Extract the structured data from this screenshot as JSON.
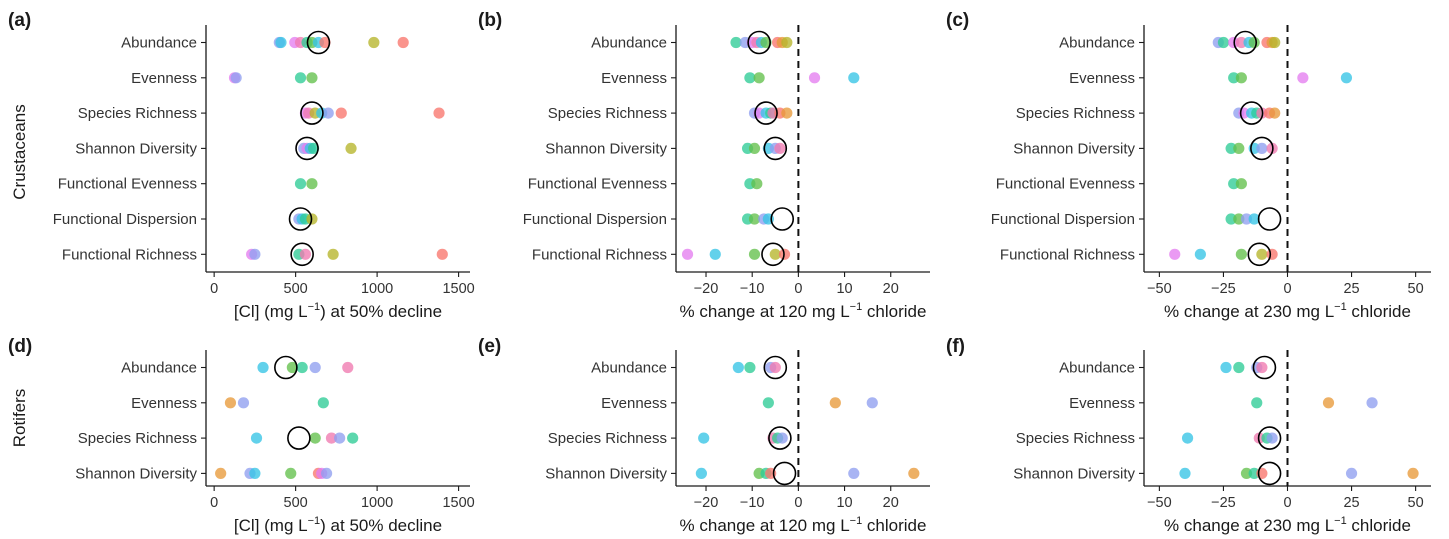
{
  "rows": [
    "Crustaceans",
    "Rotifers"
  ],
  "colors": [
    "#f8766d",
    "#e89a3a",
    "#b6b52a",
    "#63c04c",
    "#2ecc96",
    "#36c4e6",
    "#8f9ff0",
    "#e47ef0",
    "#f07ab0"
  ],
  "chart_data": [
    {
      "panel": "(a)",
      "type": "scatter",
      "row": "Crustaceans",
      "xlabel_pre": "[Cl] (mg L",
      "xlabel_sup": "−1",
      "xlabel_post": ")  at 50% decline",
      "xlim": [
        -50,
        1570
      ],
      "xticks": [
        0,
        500,
        1000,
        1500
      ],
      "zero_line": false,
      "categories": [
        "Abundance",
        "Evenness",
        "Species Richness",
        "Shannon Diversity",
        "Functional Evenness",
        "Functional Dispersion",
        "Functional Richness"
      ],
      "points": [
        {
          "y": 0,
          "x": [
            400,
            410,
            495,
            530,
            570,
            600,
            640,
            680,
            980,
            1160
          ],
          "c": [
            6,
            5,
            7,
            8,
            4,
            3,
            5,
            0,
            2,
            0
          ]
        },
        {
          "y": 1,
          "x": [
            125,
            135,
            530,
            600
          ],
          "c": [
            7,
            6,
            4,
            3
          ]
        },
        {
          "y": 2,
          "x": [
            560,
            580,
            620,
            660,
            700,
            780,
            1380
          ],
          "c": [
            7,
            8,
            2,
            5,
            6,
            0,
            0
          ]
        },
        {
          "y": 3,
          "x": [
            550,
            570,
            590,
            610,
            840
          ],
          "c": [
            6,
            7,
            5,
            4,
            2
          ]
        },
        {
          "y": 4,
          "x": [
            530,
            600
          ],
          "c": [
            4,
            3
          ]
        },
        {
          "y": 5,
          "x": [
            520,
            540,
            560,
            600
          ],
          "c": [
            6,
            5,
            4,
            2
          ]
        },
        {
          "y": 6,
          "x": [
            230,
            250,
            520,
            560,
            730,
            1400
          ],
          "c": [
            7,
            6,
            4,
            8,
            2,
            0
          ]
        }
      ],
      "means": [
        {
          "y": 0,
          "x": 640
        },
        {
          "y": 2,
          "x": 600
        },
        {
          "y": 3,
          "x": 570
        },
        {
          "y": 5,
          "x": 530
        },
        {
          "y": 6,
          "x": 540
        }
      ]
    },
    {
      "panel": "(b)",
      "type": "scatter",
      "row": "Crustaceans",
      "xlabel_pre": "% change at 120 mg L",
      "xlabel_sup": "−1",
      "xlabel_post": " chloride",
      "xlim": [
        -26.5,
        28.5
      ],
      "xticks": [
        -20,
        -10,
        0,
        10,
        20
      ],
      "zero_line": true,
      "categories": [
        "Abundance",
        "Evenness",
        "Species Richness",
        "Shannon Diversity",
        "Functional Evenness",
        "Functional Dispersion",
        "Functional Richness"
      ],
      "points": [
        {
          "y": 0,
          "x": [
            -13.5,
            -11.5,
            -10,
            -9,
            -8,
            -7,
            -4.5,
            -3.5,
            -2.5
          ],
          "c": [
            4,
            6,
            7,
            8,
            5,
            3,
            0,
            1,
            2
          ]
        },
        {
          "y": 1,
          "x": [
            -10.5,
            -8.5,
            3.5,
            12
          ],
          "c": [
            4,
            3,
            7,
            5
          ]
        },
        {
          "y": 2,
          "x": [
            -9.5,
            -8.5,
            -7,
            -6,
            -5.5,
            -4,
            -2.5
          ],
          "c": [
            6,
            7,
            5,
            4,
            8,
            0,
            1
          ]
        },
        {
          "y": 3,
          "x": [
            -11,
            -9.5,
            -6.5,
            -5,
            -4
          ],
          "c": [
            4,
            3,
            5,
            6,
            8
          ]
        },
        {
          "y": 4,
          "x": [
            -10.5,
            -9
          ],
          "c": [
            4,
            3
          ]
        },
        {
          "y": 5,
          "x": [
            -11,
            -9.5,
            -7.5,
            -6.5
          ],
          "c": [
            4,
            3,
            6,
            5
          ]
        },
        {
          "y": 6,
          "x": [
            -24,
            -18,
            -9.5,
            -5,
            -3
          ],
          "c": [
            7,
            5,
            3,
            2,
            0
          ]
        }
      ],
      "means": [
        {
          "y": 0,
          "x": -8.5
        },
        {
          "y": 2,
          "x": -7
        },
        {
          "y": 3,
          "x": -5
        },
        {
          "y": 5,
          "x": -3.5
        },
        {
          "y": 6,
          "x": -5.5
        }
      ]
    },
    {
      "panel": "(c)",
      "type": "scatter",
      "row": "Crustaceans",
      "xlabel_pre": "% change at 230 mg L",
      "xlabel_sup": "−1",
      "xlabel_post": " chloride",
      "xlim": [
        -56,
        56
      ],
      "xticks": [
        -50,
        -25,
        0,
        25,
        50
      ],
      "zero_line": true,
      "categories": [
        "Abundance",
        "Evenness",
        "Species Richness",
        "Shannon Diversity",
        "Functional Evenness",
        "Functional Dispersion",
        "Functional Richness"
      ],
      "points": [
        {
          "y": 0,
          "x": [
            -27,
            -25,
            -21,
            -18,
            -15,
            -13,
            -8,
            -6,
            -5
          ],
          "c": [
            6,
            4,
            7,
            8,
            5,
            3,
            0,
            1,
            2
          ]
        },
        {
          "y": 1,
          "x": [
            -21,
            -18,
            6,
            23
          ],
          "c": [
            4,
            3,
            7,
            5
          ]
        },
        {
          "y": 2,
          "x": [
            -19,
            -17,
            -14,
            -12,
            -10,
            -7,
            -5
          ],
          "c": [
            6,
            7,
            5,
            4,
            8,
            0,
            1
          ]
        },
        {
          "y": 3,
          "x": [
            -22,
            -19,
            -13,
            -10,
            -6
          ],
          "c": [
            4,
            3,
            5,
            6,
            8
          ]
        },
        {
          "y": 4,
          "x": [
            -21,
            -18
          ],
          "c": [
            4,
            3
          ]
        },
        {
          "y": 5,
          "x": [
            -22,
            -19,
            -16,
            -13
          ],
          "c": [
            4,
            3,
            6,
            5
          ]
        },
        {
          "y": 6,
          "x": [
            -44,
            -34,
            -18,
            -10,
            -6
          ],
          "c": [
            7,
            5,
            3,
            2,
            0
          ]
        }
      ],
      "means": [
        {
          "y": 0,
          "x": -16.5
        },
        {
          "y": 2,
          "x": -14
        },
        {
          "y": 3,
          "x": -10
        },
        {
          "y": 5,
          "x": -7
        },
        {
          "y": 6,
          "x": -11
        }
      ]
    },
    {
      "panel": "(d)",
      "type": "scatter",
      "row": "Rotifers",
      "xlabel_pre": "[Cl] (mg L",
      "xlabel_sup": "−1",
      "xlabel_post": ")  at 50% decline",
      "xlim": [
        -50,
        1570
      ],
      "xticks": [
        0,
        500,
        1000,
        1500
      ],
      "zero_line": false,
      "categories": [
        "Abundance",
        "Evenness",
        "Species Richness",
        "Shannon Diversity"
      ],
      "points": [
        {
          "y": 0,
          "x": [
            300,
            480,
            540,
            620,
            820
          ],
          "c": [
            5,
            3,
            4,
            6,
            8
          ]
        },
        {
          "y": 1,
          "x": [
            100,
            180,
            670
          ],
          "c": [
            1,
            6,
            4
          ]
        },
        {
          "y": 2,
          "x": [
            260,
            620,
            720,
            770,
            850
          ],
          "c": [
            5,
            3,
            8,
            6,
            4
          ]
        },
        {
          "y": 3,
          "x": [
            40,
            220,
            250,
            470,
            640,
            660,
            690
          ],
          "c": [
            1,
            6,
            5,
            3,
            0,
            7,
            6
          ]
        }
      ],
      "means": [
        {
          "y": 0,
          "x": 440
        },
        {
          "y": 2,
          "x": 520
        }
      ]
    },
    {
      "panel": "(e)",
      "type": "scatter",
      "row": "Rotifers",
      "xlabel_pre": "% change at 120 mg L",
      "xlabel_sup": "−1",
      "xlabel_post": " chloride",
      "xlim": [
        -26.5,
        28.5
      ],
      "xticks": [
        -20,
        -10,
        0,
        10,
        20
      ],
      "zero_line": true,
      "categories": [
        "Abundance",
        "Evenness",
        "Species Richness",
        "Shannon Diversity"
      ],
      "points": [
        {
          "y": 0,
          "x": [
            -13,
            -10.5,
            -6,
            -5
          ],
          "c": [
            5,
            4,
            6,
            8
          ]
        },
        {
          "y": 1,
          "x": [
            -6.5,
            8,
            16
          ],
          "c": [
            4,
            1,
            6
          ]
        },
        {
          "y": 2,
          "x": [
            -20.5,
            -5.5,
            -4.5,
            -3.5
          ],
          "c": [
            5,
            8,
            4,
            6
          ]
        },
        {
          "y": 3,
          "x": [
            -21,
            -8.5,
            -7,
            -6,
            12,
            25
          ],
          "c": [
            5,
            3,
            4,
            0,
            6,
            1
          ]
        }
      ],
      "means": [
        {
          "y": 0,
          "x": -5
        },
        {
          "y": 2,
          "x": -4
        },
        {
          "y": 3,
          "x": -3
        }
      ]
    },
    {
      "panel": "(f)",
      "type": "scatter",
      "row": "Rotifers",
      "xlabel_pre": "% change at 230 mg L",
      "xlabel_sup": "−1",
      "xlabel_post": " chloride",
      "xlim": [
        -56,
        56
      ],
      "xticks": [
        -50,
        -25,
        0,
        25,
        50
      ],
      "zero_line": true,
      "categories": [
        "Abundance",
        "Evenness",
        "Species Richness",
        "Shannon Diversity"
      ],
      "points": [
        {
          "y": 0,
          "x": [
            -24,
            -19,
            -12,
            -10
          ],
          "c": [
            5,
            4,
            6,
            8
          ]
        },
        {
          "y": 1,
          "x": [
            -12,
            16,
            33
          ],
          "c": [
            4,
            1,
            6
          ]
        },
        {
          "y": 2,
          "x": [
            -39,
            -11,
            -8,
            -6
          ],
          "c": [
            5,
            8,
            4,
            6
          ]
        },
        {
          "y": 3,
          "x": [
            -40,
            -16,
            -13,
            -10,
            25,
            49
          ],
          "c": [
            5,
            3,
            4,
            0,
            6,
            1
          ]
        }
      ],
      "means": [
        {
          "y": 0,
          "x": -9
        },
        {
          "y": 2,
          "x": -7
        },
        {
          "y": 3,
          "x": -7
        }
      ]
    }
  ]
}
